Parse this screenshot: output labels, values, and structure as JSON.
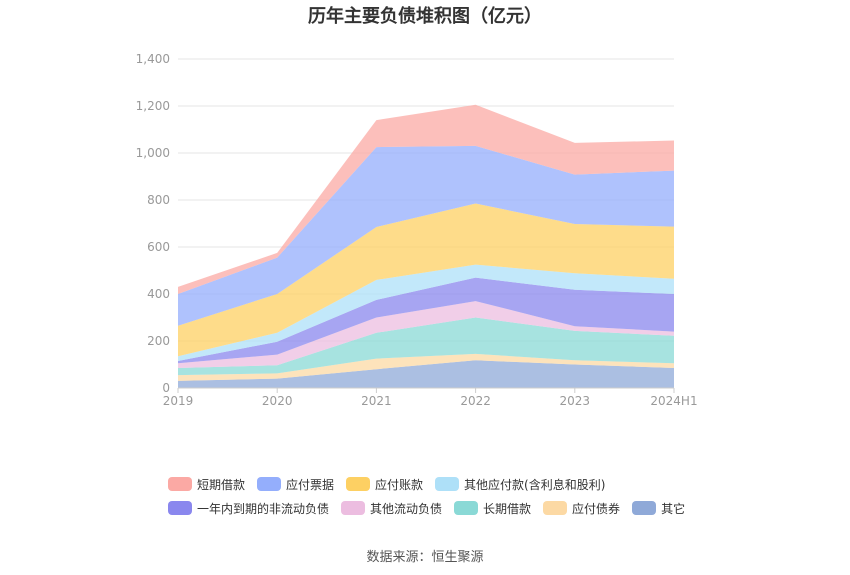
{
  "title": "历年主要负债堆积图（亿元）",
  "source": "数据来源：恒生聚源",
  "chart_data": {
    "type": "area",
    "stacked": true,
    "categories": [
      "2019",
      "2020",
      "2021",
      "2022",
      "2023",
      "2024H1"
    ],
    "ylim": [
      0,
      1400
    ],
    "yticks": [
      "0",
      "200",
      "400",
      "600",
      "800",
      "1,000",
      "1,200",
      "1,400"
    ],
    "grid": true,
    "legend_position": "bottom",
    "series": [
      {
        "name": "其它",
        "color": "#8fa9d8",
        "values": [
          30,
          40,
          80,
          118,
          100,
          85
        ]
      },
      {
        "name": "应付债券",
        "color": "#fcd9a4",
        "values": [
          25,
          22,
          45,
          27,
          18,
          20
        ]
      },
      {
        "name": "长期借款",
        "color": "#8ad9d6",
        "values": [
          30,
          35,
          110,
          155,
          125,
          117
        ]
      },
      {
        "name": "其他流动负债",
        "color": "#ecbde0",
        "values": [
          20,
          45,
          65,
          70,
          20,
          18
        ]
      },
      {
        "name": "一年内到期的非流动负债",
        "color": "#8a87ee",
        "values": [
          10,
          55,
          75,
          100,
          155,
          160
        ]
      },
      {
        "name": "其他应付款(含利息和股利)",
        "color": "#aee0f8",
        "values": [
          20,
          38,
          85,
          55,
          70,
          65
        ]
      },
      {
        "name": "应付账款",
        "color": "#fdd063",
        "values": [
          130,
          165,
          225,
          260,
          210,
          222
        ]
      },
      {
        "name": "应付票据",
        "color": "#94aefc",
        "values": [
          135,
          155,
          340,
          245,
          210,
          238
        ]
      },
      {
        "name": "短期借款",
        "color": "#fba9a4",
        "values": [
          30,
          20,
          115,
          175,
          135,
          128
        ]
      }
    ]
  }
}
